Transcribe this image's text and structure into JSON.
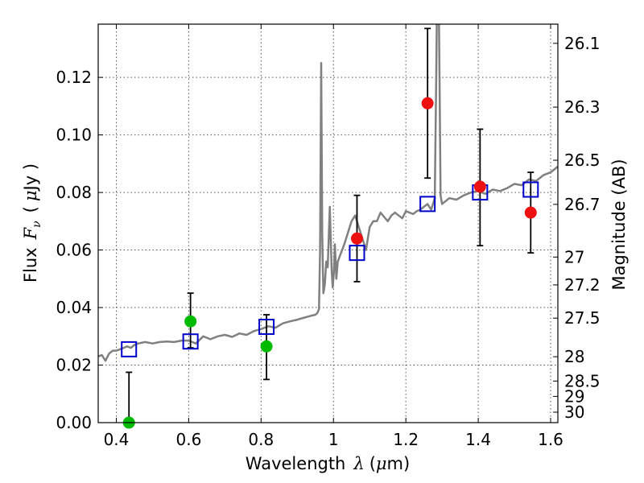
{
  "chart_data": {
    "type": "scatter",
    "title": "",
    "xlabel": {
      "text": "Wavelength",
      "symbol": "λ",
      "unit": "(",
      "unit_mu": "μ",
      "unit_rest": "m)"
    },
    "ylabel": {
      "text": "Flux",
      "symbol": "F",
      "subscript": "ν",
      "unit_open": "(",
      "unit_mu": "μ",
      "unit_rest": "Jy )"
    },
    "y2label": "Magnitude (AB)",
    "xlim": [
      0.35,
      1.62
    ],
    "ylim": [
      0.0,
      0.1385
    ],
    "grid": true,
    "x_ticks": [
      {
        "value": 0.4,
        "label": "0.4"
      },
      {
        "value": 0.6,
        "label": "0.6"
      },
      {
        "value": 0.8,
        "label": "0.8"
      },
      {
        "value": 1.0,
        "label": "1"
      },
      {
        "value": 1.2,
        "label": "1.2"
      },
      {
        "value": 1.4,
        "label": "1.4"
      },
      {
        "value": 1.6,
        "label": "1.6"
      }
    ],
    "y_ticks": [
      {
        "value": 0.0,
        "label": "0.00"
      },
      {
        "value": 0.02,
        "label": "0.02"
      },
      {
        "value": 0.04,
        "label": "0.04"
      },
      {
        "value": 0.06,
        "label": "0.06"
      },
      {
        "value": 0.08,
        "label": "0.08"
      },
      {
        "value": 0.1,
        "label": "0.10"
      },
      {
        "value": 0.12,
        "label": "0.12"
      }
    ],
    "y2_ticks": [
      {
        "value": 26.1,
        "label": "26.1"
      },
      {
        "value": 26.3,
        "label": "26.3"
      },
      {
        "value": 26.5,
        "label": "26.5"
      },
      {
        "value": 26.7,
        "label": "26.7"
      },
      {
        "value": 27.0,
        "label": "27"
      },
      {
        "value": 27.2,
        "label": "27.2"
      },
      {
        "value": 27.5,
        "label": "27.5"
      },
      {
        "value": 28.0,
        "label": "28"
      },
      {
        "value": 28.5,
        "label": "28.5"
      },
      {
        "value": 29.0,
        "label": "29"
      },
      {
        "value": 30.0,
        "label": "30"
      }
    ],
    "colors": {
      "spectrum": "#808080",
      "model_box": "#0000cc",
      "green_point": "#00bb00",
      "red_point": "#ee1111",
      "errorbar": "#000000",
      "grid": "#555555"
    },
    "series": [
      {
        "kind": "line",
        "x": [
          0.35,
          0.36,
          0.37,
          0.38,
          0.39,
          0.4,
          0.41,
          0.42,
          0.43,
          0.44,
          0.45,
          0.46,
          0.48,
          0.5,
          0.52,
          0.54,
          0.56,
          0.58,
          0.6,
          0.62,
          0.64,
          0.66,
          0.68,
          0.7,
          0.72,
          0.74,
          0.76,
          0.78,
          0.8,
          0.82,
          0.84,
          0.86,
          0.88,
          0.9,
          0.92,
          0.94,
          0.95,
          0.955,
          0.96,
          0.963,
          0.966,
          0.969,
          0.972,
          0.976,
          0.98,
          0.984,
          0.99,
          0.995,
          0.998,
          1.001,
          1.004,
          1.008,
          1.012,
          1.018,
          1.024,
          1.03,
          1.04,
          1.05,
          1.06,
          1.07,
          1.08,
          1.09,
          1.1,
          1.11,
          1.12,
          1.13,
          1.14,
          1.15,
          1.16,
          1.17,
          1.18,
          1.19,
          1.2,
          1.21,
          1.22,
          1.23,
          1.24,
          1.25,
          1.26,
          1.27,
          1.28,
          1.284,
          1.287,
          1.29,
          1.293,
          1.296,
          1.3,
          1.31,
          1.32,
          1.34,
          1.36,
          1.38,
          1.4,
          1.42,
          1.44,
          1.46,
          1.48,
          1.5,
          1.52,
          1.54,
          1.56,
          1.58,
          1.6,
          1.62
        ],
        "y": [
          0.023,
          0.0235,
          0.0215,
          0.024,
          0.025,
          0.025,
          0.0255,
          0.026,
          0.0265,
          0.026,
          0.027,
          0.0275,
          0.028,
          0.0275,
          0.028,
          0.0282,
          0.028,
          0.0285,
          0.0285,
          0.0275,
          0.03,
          0.029,
          0.03,
          0.0305,
          0.0298,
          0.031,
          0.0305,
          0.0318,
          0.0325,
          0.0335,
          0.033,
          0.0345,
          0.0352,
          0.0358,
          0.0365,
          0.0372,
          0.0375,
          0.038,
          0.0395,
          0.06,
          0.125,
          0.065,
          0.045,
          0.048,
          0.056,
          0.054,
          0.075,
          0.053,
          0.047,
          0.052,
          0.062,
          0.05,
          0.056,
          0.058,
          0.06,
          0.062,
          0.066,
          0.07,
          0.072,
          0.068,
          0.064,
          0.06,
          0.068,
          0.07,
          0.07,
          0.073,
          0.0715,
          0.07,
          0.072,
          0.073,
          0.072,
          0.071,
          0.0735,
          0.073,
          0.0725,
          0.0735,
          0.074,
          0.075,
          0.076,
          0.074,
          0.078,
          0.12,
          0.16,
          0.16,
          0.12,
          0.079,
          0.076,
          0.077,
          0.078,
          0.0775,
          0.079,
          0.08,
          0.0805,
          0.0795,
          0.081,
          0.0805,
          0.0815,
          0.083,
          0.0825,
          0.0845,
          0.084,
          0.086,
          0.087,
          0.089
        ]
      },
      {
        "kind": "model_boxes",
        "x": [
          0.435,
          0.605,
          0.815,
          1.065,
          1.26,
          1.405,
          1.545
        ],
        "y": [
          0.0255,
          0.0282,
          0.0333,
          0.059,
          0.076,
          0.08,
          0.081
        ]
      },
      {
        "kind": "points",
        "color": "green",
        "x": [
          0.435,
          0.605,
          0.815
        ],
        "y": [
          0.0,
          0.0352,
          0.0265
        ],
        "err_low": [
          0.0,
          0.026,
          0.015
        ],
        "err_high": [
          0.0175,
          0.045,
          0.0375
        ]
      },
      {
        "kind": "points",
        "color": "red",
        "x": [
          1.065,
          1.26,
          1.405,
          1.545
        ],
        "y": [
          0.064,
          0.111,
          0.082,
          0.073
        ],
        "err_low": [
          0.049,
          0.085,
          0.0615,
          0.059
        ],
        "err_high": [
          0.079,
          0.137,
          0.102,
          0.087
        ]
      }
    ]
  }
}
